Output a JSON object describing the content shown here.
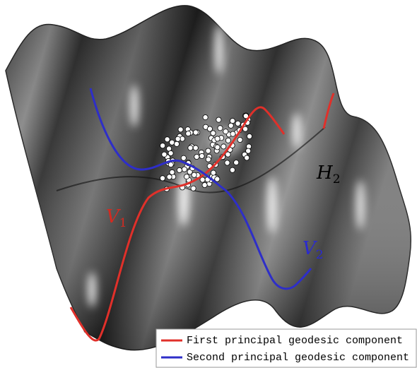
{
  "labels": [
    {
      "text": "V",
      "sub": "1",
      "color": "#d42a20"
    },
    {
      "text": "V",
      "sub": "2",
      "color": "#2a2ad0"
    },
    {
      "text": "H",
      "sub": "2",
      "color": "#000000"
    }
  ],
  "legend": [
    {
      "label": "First principal geodesic component",
      "color": "#e0302a"
    },
    {
      "label": "Second principal geodesic component",
      "color": "#2e2ec8"
    }
  ]
}
